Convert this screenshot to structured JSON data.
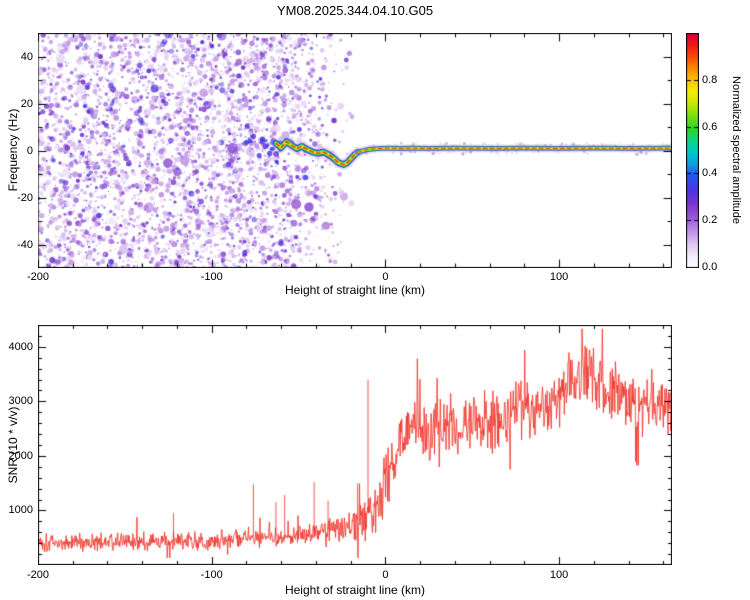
{
  "title": "YM08.2025.344.04.10.G05",
  "chart_data": [
    {
      "type": "heatmap",
      "title": "YM08.2025.344.04.10.G05",
      "xlabel": "Height of straight line (km)",
      "ylabel": "Frequency (Hz)",
      "xlim": [
        -200,
        165
      ],
      "ylim": [
        -50,
        50
      ],
      "xticks": [
        -200,
        -100,
        0,
        100
      ],
      "xtick_labels": [
        "-200",
        "-100",
        "0",
        "100"
      ],
      "x_minor_step": 20,
      "yticks": [
        -40,
        -20,
        0,
        20,
        40
      ],
      "ytick_labels": [
        "-40",
        "-20",
        "0",
        "20",
        "40"
      ],
      "y_minor_step": 10,
      "colorbar": {
        "label": "Normalized spectral amplitude",
        "tick_values": [
          0,
          0.2,
          0.4,
          0.6,
          0.8
        ],
        "tick_labels": [
          "0.0",
          "0.2",
          "0.4",
          "0.6",
          "0.8"
        ],
        "range": [
          0,
          1
        ],
        "colormap_stops": [
          [
            0.0,
            "#ffffff"
          ],
          [
            0.05,
            "#f3eafb"
          ],
          [
            0.1,
            "#ddc6f0"
          ],
          [
            0.16,
            "#bb8ce4"
          ],
          [
            0.22,
            "#9454d2"
          ],
          [
            0.28,
            "#7433cc"
          ],
          [
            0.33,
            "#4b36e2"
          ],
          [
            0.39,
            "#2553ee"
          ],
          [
            0.44,
            "#129ae0"
          ],
          [
            0.49,
            "#00c8c8"
          ],
          [
            0.54,
            "#0cd488"
          ],
          [
            0.59,
            "#2ad42a"
          ],
          [
            0.65,
            "#7fdf12"
          ],
          [
            0.7,
            "#c8e607"
          ],
          [
            0.75,
            "#f2ef00"
          ],
          [
            0.8,
            "#f9c400"
          ],
          [
            0.85,
            "#f98b00"
          ],
          [
            0.9,
            "#f94a06"
          ],
          [
            0.95,
            "#ee1a14"
          ],
          [
            1.0,
            "#d4003c"
          ]
        ]
      },
      "noise_region": {
        "x_range": [
          -200,
          -15
        ],
        "full_density_until": -50,
        "description": "random purple speckle noise across all frequencies, fading out between -50 and -15 km"
      },
      "signal_ridge": {
        "description": "high-amplitude narrow spectral line near 0 Hz, wiggles and dips to about -6 Hz near -25 km, then flat ~1 Hz to the right edge",
        "x": [
          -63,
          -60,
          -57,
          -54,
          -51,
          -48,
          -45,
          -42,
          -39,
          -36,
          -33,
          -30,
          -27,
          -24,
          -22,
          -20,
          -18,
          -16,
          -13,
          -10,
          -6,
          -2,
          2,
          8,
          15,
          25,
          40,
          60,
          80,
          100,
          120,
          140,
          165
        ],
        "frequency_hz": [
          3.0,
          1.2,
          3.8,
          2.2,
          0.8,
          1.8,
          0.4,
          -0.6,
          -1.2,
          -0.6,
          -1.6,
          -3.2,
          -5.2,
          -6.0,
          -5.2,
          -3.6,
          -2.0,
          -0.8,
          -0.1,
          0.4,
          0.7,
          0.9,
          1.0,
          0.9,
          1.0,
          0.9,
          1.0,
          0.9,
          1.0,
          0.9,
          1.0,
          0.9,
          1.0
        ]
      }
    },
    {
      "type": "line",
      "xlabel": "Height of straight line (km)",
      "ylabel": "SNR (10 * v/v)",
      "xlim": [
        -200,
        165
      ],
      "ylim": [
        0,
        4400
      ],
      "xticks": [
        -200,
        -100,
        0,
        100
      ],
      "xtick_labels": [
        "-200",
        "-100",
        "0",
        "100"
      ],
      "x_minor_step": 20,
      "yticks": [
        1000,
        2000,
        3000,
        4000
      ],
      "ytick_labels": [
        "1000",
        "2000",
        "3000",
        "4000"
      ],
      "y_minor_step": 200,
      "series": [
        {
          "name": "SNR",
          "color": "#ef2f24",
          "x": [
            -200,
            -195,
            -190,
            -185,
            -180,
            -175,
            -170,
            -165,
            -160,
            -155,
            -150,
            -145,
            -140,
            -135,
            -130,
            -125,
            -120,
            -115,
            -110,
            -105,
            -100,
            -95,
            -90,
            -85,
            -80,
            -75,
            -70,
            -65,
            -60,
            -55,
            -50,
            -45,
            -40,
            -35,
            -30,
            -25,
            -20,
            -15,
            -10,
            -5,
            0,
            5,
            10,
            15,
            20,
            25,
            30,
            35,
            40,
            45,
            50,
            55,
            60,
            65,
            70,
            75,
            80,
            85,
            90,
            95,
            100,
            105,
            110,
            115,
            120,
            125,
            130,
            135,
            140,
            145,
            150,
            155,
            160,
            165
          ],
          "mean": [
            430,
            410,
            420,
            400,
            415,
            405,
            420,
            410,
            425,
            410,
            420,
            415,
            425,
            415,
            430,
            440,
            445,
            430,
            445,
            450,
            460,
            465,
            475,
            480,
            500,
            510,
            505,
            520,
            530,
            540,
            560,
            580,
            610,
            640,
            660,
            700,
            760,
            820,
            950,
            1150,
            1600,
            1900,
            2350,
            2500,
            2400,
            2450,
            2500,
            2550,
            2600,
            2650,
            2700,
            2600,
            2550,
            2700,
            2800,
            2850,
            2900,
            2850,
            2900,
            3000,
            3100,
            3300,
            3500,
            3550,
            3400,
            3300,
            3200,
            3100,
            3050,
            3000,
            3000,
            2950,
            2900,
            2900
          ],
          "noise_amplitude": [
            170,
            170,
            170,
            170,
            170,
            170,
            170,
            170,
            170,
            170,
            170,
            170,
            170,
            170,
            170,
            170,
            170,
            170,
            170,
            170,
            170,
            170,
            170,
            170,
            170,
            170,
            170,
            170,
            170,
            170,
            170,
            170,
            190,
            210,
            240,
            280,
            320,
            380,
            460,
            560,
            660,
            680,
            580,
            540,
            540,
            540,
            540,
            540,
            540,
            540,
            540,
            540,
            560,
            540,
            540,
            540,
            540,
            540,
            540,
            540,
            560,
            600,
            620,
            620,
            600,
            580,
            560,
            560,
            560,
            560,
            560,
            560,
            560,
            560
          ],
          "spikes": [
            {
              "x": -122,
              "value": 950
            },
            {
              "x": -76,
              "value": 1480
            },
            {
              "x": -63,
              "value": 1150
            },
            {
              "x": -58,
              "value": 1280
            },
            {
              "x": -41,
              "value": 1520
            },
            {
              "x": -33,
              "value": 1180
            },
            {
              "x": -10,
              "value": 3400
            },
            {
              "x": -16,
              "value": 1500
            }
          ]
        }
      ]
    }
  ]
}
